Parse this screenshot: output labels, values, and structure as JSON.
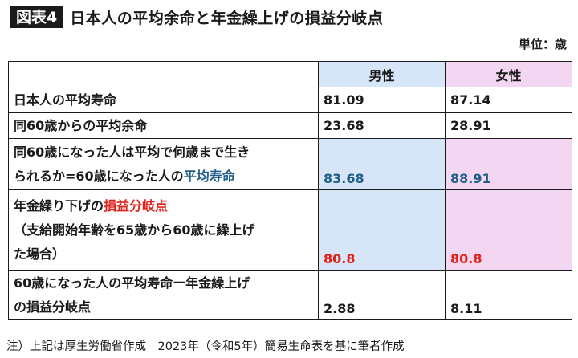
{
  "header": {
    "figure_label": "図表4",
    "title": "日本人の平均余命と年金繰上げの損益分岐点"
  },
  "unit": "単位：歳",
  "table": {
    "columns": [
      "男性",
      "女性"
    ],
    "rows": [
      {
        "label": "日本人の平均寿命",
        "male": "81.09",
        "female": "87.14"
      },
      {
        "label": "同60歳からの平均余命",
        "male": "23.68",
        "female": "28.91"
      },
      {
        "label_line1": "同60歳になった人は平均で何歳まで生き",
        "label_line2_plain": "られるか=60歳になった人の",
        "label_line2_highlight": "平均寿命",
        "male": "83.68",
        "female": "88.91"
      },
      {
        "label_line1_plain": "年金繰り下げの",
        "label_line1_highlight": "損益分岐点",
        "label_line2": "（支給開始年齢を65歳から60歳に繰上げ",
        "label_line3": "た場合）",
        "male": "80.8",
        "female": "80.8"
      },
      {
        "label_line1": "60歳になった人の平均寿命ー年金繰上げ",
        "label_line2": "の損益分岐点",
        "male": "2.88",
        "female": "8.11"
      }
    ]
  },
  "note": "注）上記は厚生労働省作成　2023年（令和5年）簡易生命表を基に筆者作成",
  "colors": {
    "male_bg": "#d6e6f8",
    "female_bg": "#f3d6f1",
    "blue_text": "#1f5e86",
    "red_text": "#e0221b"
  }
}
